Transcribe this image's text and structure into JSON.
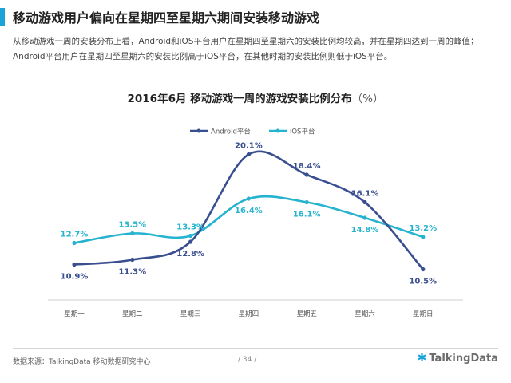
{
  "header": {
    "title": "移动游戏用户偏向在星期四至星期六期间安装移动游戏",
    "description": "从移动游戏一周的安装分布上看，Android和iOS平台用户在星期四至星期六的安装比例均较高，并在星期四达到一周的峰值；Android平台用户在星期四至星期六的安装比例高于iOS平台，在其他时期的安装比例则低于iOS平台。"
  },
  "chart_data": {
    "type": "line",
    "title": "2016年6月 移动游戏一周的游戏安装比例分布",
    "unit_label": "（%）",
    "categories": [
      "星期一",
      "星期二",
      "星期三",
      "星期四",
      "星期五",
      "星期六",
      "星期日"
    ],
    "series": [
      {
        "name": "Android平台",
        "color": "#3a4f8f",
        "values": [
          10.9,
          11.3,
          12.8,
          20.1,
          18.4,
          16.1,
          10.5
        ]
      },
      {
        "name": "iOS平台",
        "color": "#25b3cf",
        "values": [
          12.7,
          13.5,
          13.3,
          16.4,
          16.1,
          14.8,
          13.2
        ]
      }
    ],
    "ylim": [
      9,
      21
    ],
    "legend_position": "top-center",
    "grid": false
  },
  "footer": {
    "source": "数据来源：TalkingData  移动数据研究中心",
    "page": "/ 34 /",
    "brand": "TalkingData"
  },
  "colors": {
    "accent": "#19a3d6",
    "android": "#3a4f8f",
    "ios": "#25b3cf"
  }
}
